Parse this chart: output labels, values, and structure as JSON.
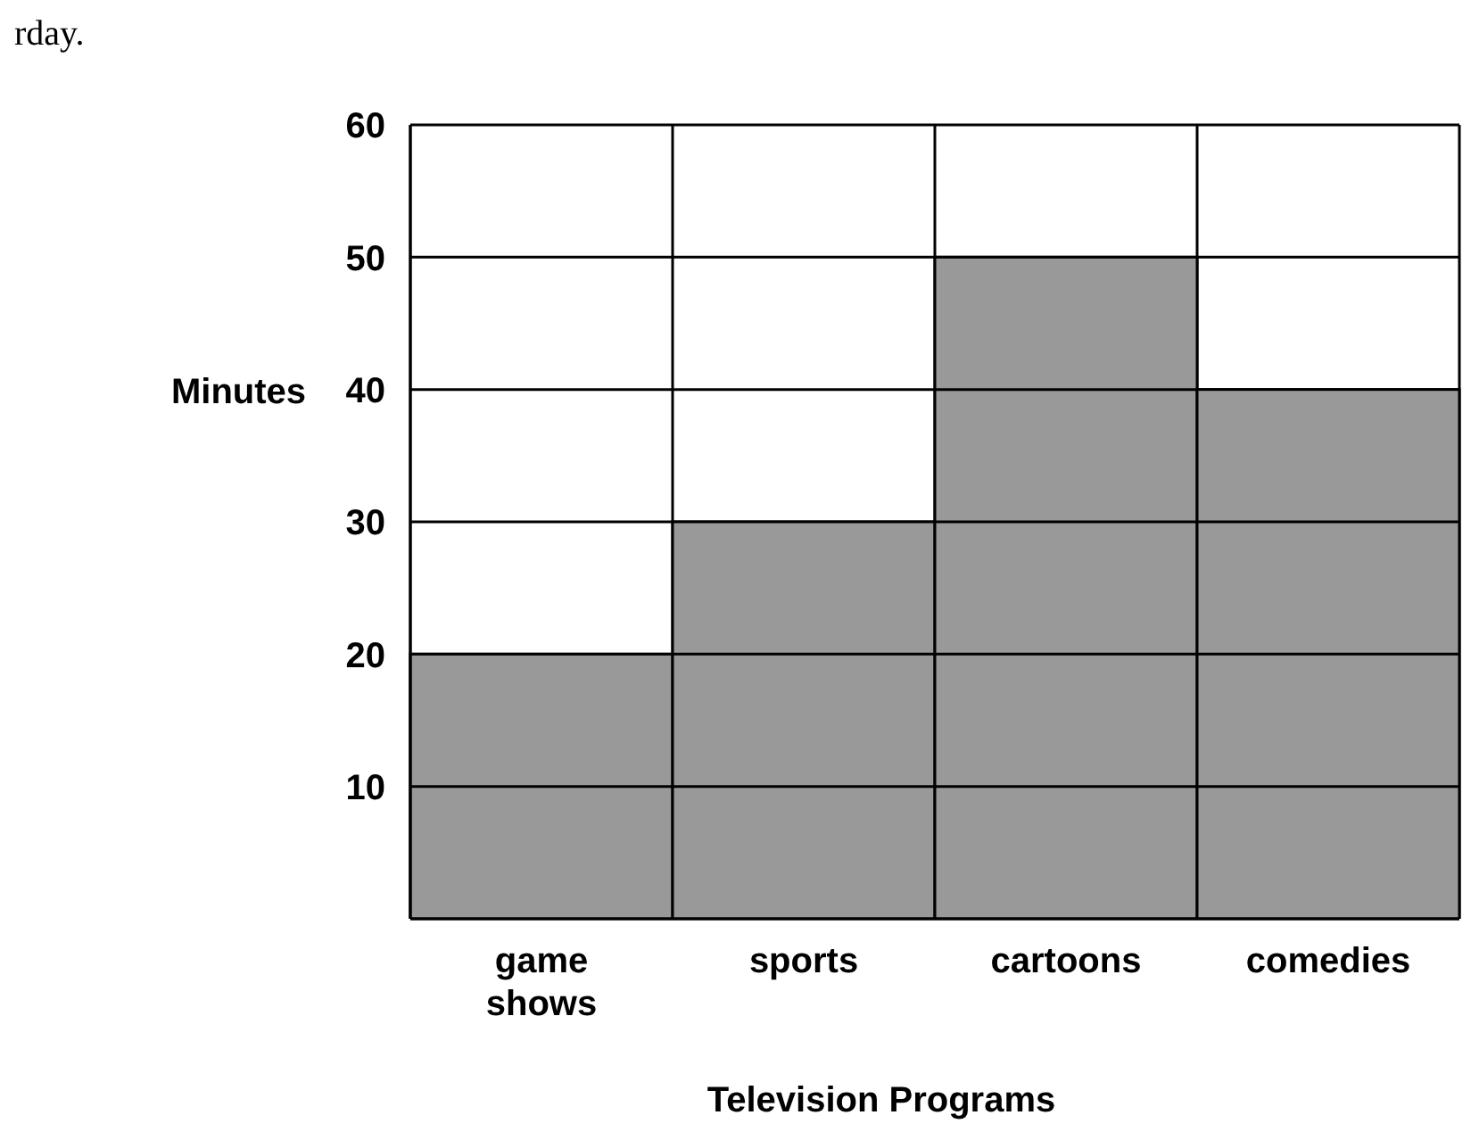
{
  "chart_data": {
    "type": "bar",
    "annotations": [
      "rday."
    ],
    "xlabel": "Television Programs",
    "ylabel": "Minutes",
    "categories": [
      "game shows",
      "sports",
      "cartoons",
      "comedies"
    ],
    "values": [
      20,
      30,
      50,
      40
    ],
    "color": "#999999",
    "ylim": [
      0,
      60
    ],
    "yticks": [
      10,
      20,
      30,
      40,
      50,
      60
    ],
    "grid": true
  }
}
